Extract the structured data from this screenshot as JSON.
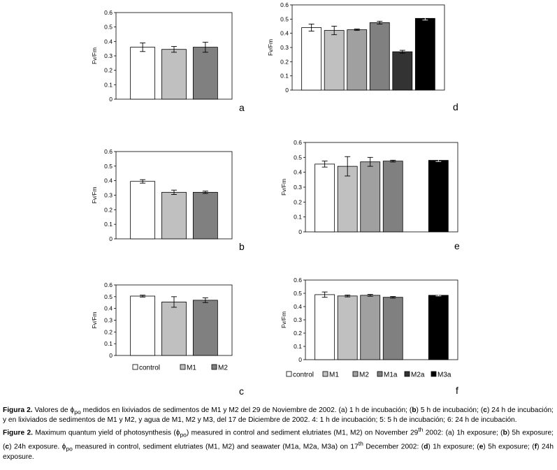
{
  "chart_data": [
    {
      "id": "a",
      "type": "bar",
      "panel_letter": "a",
      "ylabel": "Fv/Fm",
      "ylim": [
        0,
        0.6
      ],
      "yticks": [
        0,
        0.1,
        0.2,
        0.3,
        0.4,
        0.5,
        0.6
      ],
      "grid": false,
      "categories": [
        "control",
        "M1",
        "M2"
      ],
      "values": [
        0.36,
        0.345,
        0.36
      ],
      "errors": [
        0.03,
        0.02,
        0.035
      ],
      "colors": [
        "#ffffff",
        "#c0c0c0",
        "#808080"
      ]
    },
    {
      "id": "b",
      "type": "bar",
      "panel_letter": "b",
      "ylabel": "Fv/Fm",
      "ylim": [
        0,
        0.6
      ],
      "yticks": [
        0,
        0.1,
        0.2,
        0.3,
        0.4,
        0.5,
        0.6
      ],
      "grid": false,
      "categories": [
        "control",
        "M1",
        "M2"
      ],
      "values": [
        0.395,
        0.32,
        0.32
      ],
      "errors": [
        0.012,
        0.015,
        0.008
      ],
      "colors": [
        "#ffffff",
        "#c0c0c0",
        "#808080"
      ]
    },
    {
      "id": "c",
      "type": "bar",
      "panel_letter": "c",
      "ylabel": "Fv/Fm",
      "ylim": [
        0,
        0.6
      ],
      "yticks": [
        0,
        0.1,
        0.2,
        0.3,
        0.4,
        0.5,
        0.6
      ],
      "grid": false,
      "categories": [
        "control",
        "M1",
        "M2"
      ],
      "values": [
        0.505,
        0.455,
        0.47
      ],
      "errors": [
        0.008,
        0.045,
        0.02
      ],
      "colors": [
        "#ffffff",
        "#c0c0c0",
        "#808080"
      ],
      "legend": [
        "control",
        "M1",
        "M2"
      ]
    },
    {
      "id": "d",
      "type": "bar",
      "panel_letter": "d",
      "ylabel": "Fv/Fm",
      "ylim": [
        0,
        0.6
      ],
      "yticks": [
        0,
        0.1,
        0.2,
        0.3,
        0.4,
        0.5,
        0.6
      ],
      "grid": false,
      "categories": [
        "control",
        "M1",
        "M2",
        "M1a",
        "M2a",
        "M3a"
      ],
      "values": [
        0.44,
        0.42,
        0.425,
        0.475,
        0.27,
        0.505
      ],
      "errors": [
        0.025,
        0.03,
        0.005,
        0.01,
        0.01,
        0.012
      ],
      "colors": [
        "#ffffff",
        "#c0c0c0",
        "#a0a0a0",
        "#808080",
        "#333333",
        "#000000"
      ]
    },
    {
      "id": "e",
      "type": "bar",
      "panel_letter": "e",
      "ylabel": "Fv/Fm",
      "ylim": [
        0,
        0.6
      ],
      "yticks": [
        0,
        0.1,
        0.2,
        0.3,
        0.4,
        0.5,
        0.6
      ],
      "grid": false,
      "categories": [
        "control",
        "M1",
        "M2",
        "M1a",
        "M2a",
        "M3a"
      ],
      "values": [
        0.455,
        0.44,
        0.47,
        0.475,
        null,
        0.48
      ],
      "errors": [
        0.02,
        0.065,
        0.03,
        0.006,
        null,
        0.008
      ],
      "colors": [
        "#ffffff",
        "#c0c0c0",
        "#a0a0a0",
        "#808080",
        "#333333",
        "#000000"
      ]
    },
    {
      "id": "f",
      "type": "bar",
      "panel_letter": "f",
      "ylabel": "Fv/Fm",
      "ylim": [
        0,
        0.6
      ],
      "yticks": [
        0,
        0.1,
        0.2,
        0.3,
        0.4,
        0.5,
        0.6
      ],
      "grid": false,
      "categories": [
        "control",
        "M1",
        "M2",
        "M1a",
        "M2a",
        "M3a"
      ],
      "values": [
        0.49,
        0.48,
        0.485,
        0.47,
        null,
        0.485
      ],
      "errors": [
        0.02,
        0.007,
        0.007,
        0.006,
        null,
        0.005
      ],
      "colors": [
        "#ffffff",
        "#c0c0c0",
        "#a0a0a0",
        "#808080",
        "#333333",
        "#000000"
      ],
      "legend": [
        "control",
        "M1",
        "M2",
        "M1a",
        "M2a",
        "M3a"
      ]
    }
  ],
  "caption": {
    "es_label": "Figura 2.",
    "es_text_1": " Valores de ϕ",
    "es_sub": "po",
    "es_text_2": " medidos en lixiviados de sedimentos de M1 y M2 del 29 de Noviembre de 2002. (a) 1 h de incubación; (",
    "es_b": "b",
    "es_text_3": ") 5 h de incubación; (",
    "es_c": "c",
    "es_text_4": ") 24 h de incubación; y en lixiviados de sedimentos de M1 y M2, y agua de M1, M2 y M3, del 17 de Diciembre de 2002. 4: 1 h de incubación; 5: 5 h de incubación; 6: 24 h de incubación.",
    "en_label": "Figure 2.",
    "en_text_1": " Maximum quantum yield of photosynthesis (ϕ",
    "en_sub1": "po",
    "en_text_2": ") measured in control and sediment elutriates (M1, M2) on November 29",
    "en_sup1": "th",
    "en_text_3": " 2002: (a) 1h exposure; (",
    "en_b": "b",
    "en_text_4": ") 5h exposure; (",
    "en_c": "c",
    "en_text_5": ") 24h exposure. ϕ",
    "en_sub2": "po",
    "en_text_6": " measured in control, sediment elutriates (M1, M2) and seawater (M1a, M2a, M3a) on 17",
    "en_sup2": "th",
    "en_text_7": " December 2002: (",
    "en_d": "d",
    "en_text_8": ") 1h exposure; (",
    "en_e": "e",
    "en_text_9": ") 5h exposure; (",
    "en_f": "f",
    "en_text_10": ") 24h exposure."
  }
}
